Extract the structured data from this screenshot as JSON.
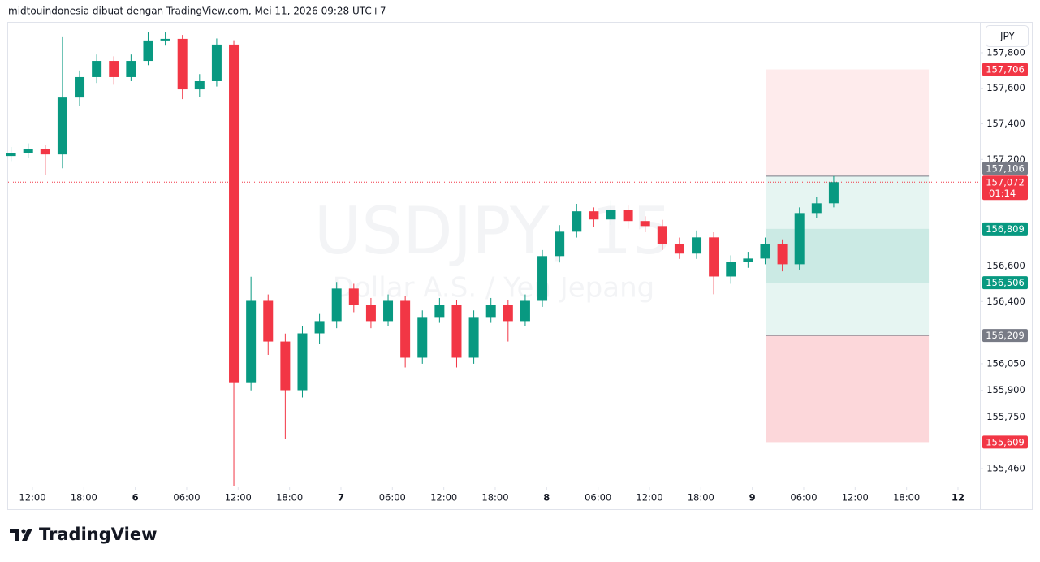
{
  "header": "midtouindonesia dibuat dengan TradingView.com, Mei 11, 2026 09:28 UTC+7",
  "brand": "TradingView",
  "currency": "JPY",
  "chart_data": {
    "type": "candlestick",
    "watermark": "USDJPY, 15",
    "watermark_subtitle": "Dollar A.S. / Yen Jepang",
    "up_color": "#089981",
    "down_color": "#f23645",
    "x": [
      -2.5,
      -0.5,
      1.5,
      3.5,
      5.5,
      7.5,
      9.5,
      11.5,
      13.5,
      15.5,
      17.5,
      19.5,
      21.5,
      23.5,
      25.5,
      27.5,
      29.5,
      31.5,
      33.5,
      35.5,
      37.5,
      39.5,
      41.5,
      43.5,
      45.5,
      47.5,
      49.5,
      51.5,
      53.5,
      55.5,
      57.5,
      59.5,
      61.5,
      63.5,
      65.5,
      67.5,
      69.5,
      71.5,
      73.5,
      75.5,
      77.5,
      79.5,
      81.5,
      83.5,
      85.5,
      87.5,
      89.5,
      91.5,
      93.5
    ],
    "open": [
      157.219,
      157.237,
      157.26,
      157.228,
      157.548,
      157.663,
      157.754,
      157.663,
      157.754,
      157.869,
      157.878,
      157.594,
      157.64,
      157.846,
      155.946,
      156.404,
      156.175,
      155.901,
      156.221,
      156.29,
      156.473,
      156.381,
      156.29,
      156.404,
      156.084,
      156.313,
      156.381,
      156.084,
      156.313,
      156.381,
      156.29,
      156.404,
      156.656,
      156.793,
      156.908,
      156.862,
      156.917,
      156.853,
      156.825,
      156.724,
      156.67,
      156.761,
      156.541,
      156.624,
      156.642,
      156.724,
      156.61,
      156.898,
      156.953
    ],
    "high": [
      157.27,
      157.29,
      157.28,
      157.892,
      157.7,
      157.79,
      157.78,
      157.79,
      157.914,
      157.914,
      157.9,
      157.68,
      157.88,
      157.87,
      156.54,
      156.44,
      156.22,
      156.26,
      156.33,
      156.51,
      156.5,
      156.42,
      156.44,
      156.43,
      156.35,
      156.42,
      156.41,
      156.35,
      156.42,
      156.41,
      156.44,
      156.69,
      156.83,
      156.95,
      156.93,
      156.97,
      156.94,
      156.88,
      156.86,
      156.76,
      156.8,
      156.79,
      156.66,
      156.68,
      156.76,
      156.75,
      156.93,
      156.99,
      157.106
    ],
    "low": [
      157.19,
      157.21,
      157.114,
      157.15,
      157.5,
      157.63,
      157.62,
      157.64,
      157.73,
      157.84,
      157.539,
      157.55,
      157.61,
      155.361,
      155.9,
      156.1,
      155.626,
      155.86,
      156.16,
      156.25,
      156.34,
      156.25,
      156.26,
      156.029,
      156.05,
      156.28,
      156.029,
      156.05,
      156.28,
      156.175,
      156.26,
      156.37,
      156.62,
      156.76,
      156.82,
      156.83,
      156.81,
      156.79,
      156.69,
      156.64,
      156.64,
      156.441,
      156.5,
      156.59,
      156.61,
      156.57,
      156.58,
      156.87,
      156.93
    ],
    "close": [
      157.237,
      157.26,
      157.228,
      157.548,
      157.663,
      157.754,
      157.663,
      157.754,
      157.869,
      157.878,
      157.594,
      157.64,
      157.846,
      155.946,
      156.404,
      156.175,
      155.901,
      156.221,
      156.29,
      156.473,
      156.381,
      156.29,
      156.404,
      156.084,
      156.313,
      156.381,
      156.084,
      156.313,
      156.381,
      156.29,
      156.404,
      156.656,
      156.793,
      156.908,
      156.862,
      156.917,
      156.853,
      156.825,
      156.724,
      156.67,
      156.761,
      156.541,
      156.624,
      156.642,
      156.724,
      156.61,
      156.898,
      156.953,
      157.072
    ],
    "xlim": [
      -2.84,
      110.56
    ],
    "ylim": [
      155.355,
      157.969
    ],
    "xticks": [
      {
        "value": 0,
        "label": "12:00"
      },
      {
        "value": 6,
        "label": "18:00"
      },
      {
        "value": 12,
        "label": "6"
      },
      {
        "value": 18,
        "label": "06:00"
      },
      {
        "value": 24,
        "label": "12:00"
      },
      {
        "value": 30,
        "label": "18:00"
      },
      {
        "value": 36,
        "label": "7"
      },
      {
        "value": 42,
        "label": "06:00"
      },
      {
        "value": 48,
        "label": "12:00"
      },
      {
        "value": 54,
        "label": "18:00"
      },
      {
        "value": 60,
        "label": "8"
      },
      {
        "value": 66,
        "label": "06:00"
      },
      {
        "value": 72,
        "label": "12:00"
      },
      {
        "value": 78,
        "label": "18:00"
      },
      {
        "value": 84,
        "label": "9"
      },
      {
        "value": 90,
        "label": "06:00"
      },
      {
        "value": 96,
        "label": "12:00"
      },
      {
        "value": 102,
        "label": "18:00"
      },
      {
        "value": 108,
        "label": "12"
      }
    ],
    "yticks": [
      {
        "value": 157.8,
        "label": "157,800"
      },
      {
        "value": 157.6,
        "label": "157,600"
      },
      {
        "value": 157.4,
        "label": "157,400"
      },
      {
        "value": 157.2,
        "label": "157,200"
      },
      {
        "value": 156.6,
        "label": "156,600"
      },
      {
        "value": 156.4,
        "label": "156,400"
      },
      {
        "value": 156.05,
        "label": "156,050"
      },
      {
        "value": 155.9,
        "label": "155,900"
      },
      {
        "value": 155.75,
        "label": "155,750"
      },
      {
        "value": 155.46,
        "label": "155,460"
      }
    ],
    "position_tool": {
      "x": [
        85.55,
        104.6
      ],
      "zones": [
        {
          "from": 157.706,
          "to": 157.106,
          "color": "rgba(242,54,69,0.1)"
        },
        {
          "from": 157.106,
          "to": 156.209,
          "color": "rgba(8,153,129,0.1)"
        },
        {
          "from": 156.809,
          "to": 156.506,
          "color": "rgba(8,153,129,0.12)"
        },
        {
          "from": 156.209,
          "to": 155.609,
          "color": "rgba(242,54,69,0.2)"
        }
      ],
      "lines": [
        157.106,
        156.209
      ]
    },
    "current_price": {
      "value": 157.072,
      "label": "157,072",
      "countdown": "01:14",
      "color": "#f23645"
    },
    "price_tags": [
      {
        "value": 157.706,
        "label": "157,706",
        "color": "#f23645"
      },
      {
        "value": 157.106,
        "label": "157,106",
        "color": "#787b86"
      },
      {
        "value": 156.809,
        "label": "156,809",
        "color": "#089981"
      },
      {
        "value": 156.506,
        "label": "156,506",
        "color": "#089981"
      },
      {
        "value": 156.209,
        "label": "156,209",
        "color": "#787b86"
      },
      {
        "value": 155.609,
        "label": "155,609",
        "color": "#f23645"
      }
    ]
  }
}
